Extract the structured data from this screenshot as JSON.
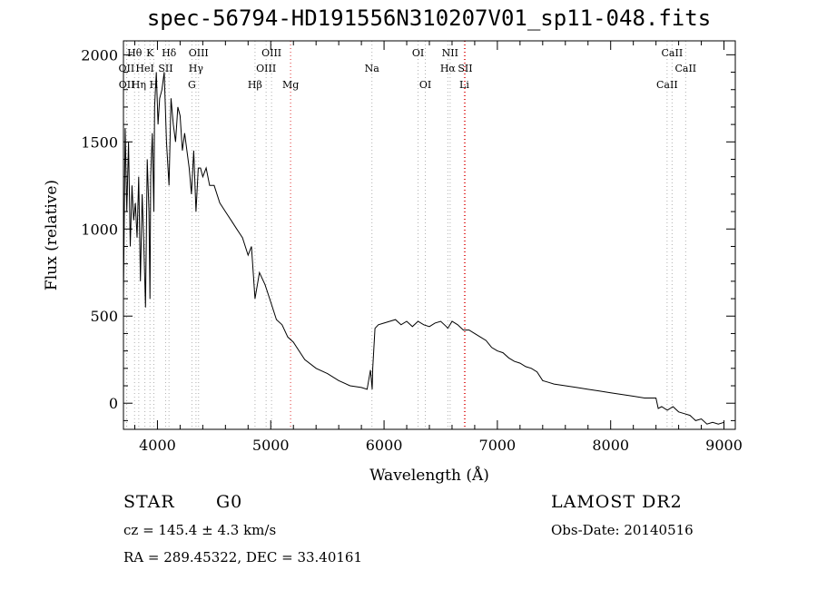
{
  "chart_data": {
    "type": "line",
    "title": "spec-56794-HD191556N310207V01_sp11-048.fits",
    "xlabel": "Wavelength (Å)",
    "ylabel": "Flux (relative)",
    "xlim": [
      3700,
      9100
    ],
    "ylim": [
      -150,
      2080
    ],
    "xticks": [
      4000,
      5000,
      6000,
      7000,
      8000,
      9000
    ],
    "yticks": [
      0,
      500,
      1000,
      1500,
      2000
    ],
    "grid": false,
    "series": [
      {
        "x": [
          3700,
          3715,
          3730,
          3745,
          3760,
          3775,
          3790,
          3805,
          3820,
          3835,
          3850,
          3865,
          3880,
          3895,
          3910,
          3925,
          3934,
          3940,
          3955,
          3968,
          3975,
          3990,
          4005,
          4020,
          4040,
          4060,
          4080,
          4102,
          4120,
          4140,
          4160,
          4180,
          4200,
          4220,
          4240,
          4260,
          4280,
          4300,
          4320,
          4340,
          4360,
          4380,
          4400,
          4430,
          4460,
          4500,
          4550,
          4600,
          4650,
          4700,
          4750,
          4800,
          4830,
          4861,
          4900,
          4950,
          5000,
          5050,
          5100,
          5150,
          5200,
          5300,
          5400,
          5500,
          5600,
          5700,
          5800,
          5850,
          5880,
          5895,
          5900,
          5920,
          5950,
          6000,
          6050,
          6100,
          6150,
          6200,
          6250,
          6300,
          6350,
          6400,
          6450,
          6500,
          6550,
          6563,
          6600,
          6650,
          6700,
          6750,
          6800,
          6850,
          6900,
          6950,
          7000,
          7050,
          7100,
          7150,
          7200,
          7250,
          7300,
          7350,
          7400,
          7450,
          7500,
          7600,
          7700,
          7800,
          7900,
          8000,
          8100,
          8200,
          8300,
          8400,
          8420,
          8450,
          8500,
          8550,
          8600,
          8650,
          8700,
          8750,
          8800,
          8850,
          8900,
          8950,
          9000
        ],
        "y": [
          600,
          1580,
          1100,
          1500,
          900,
          1250,
          1050,
          1150,
          950,
          1300,
          700,
          1200,
          900,
          550,
          1400,
          1100,
          600,
          1300,
          1550,
          1100,
          1700,
          1900,
          1600,
          1750,
          1800,
          1900,
          1500,
          1250,
          1750,
          1600,
          1500,
          1700,
          1650,
          1450,
          1550,
          1450,
          1350,
          1200,
          1450,
          1100,
          1350,
          1350,
          1300,
          1350,
          1250,
          1250,
          1150,
          1100,
          1050,
          1000,
          950,
          850,
          900,
          600,
          750,
          680,
          580,
          480,
          450,
          380,
          350,
          250,
          200,
          170,
          130,
          100,
          90,
          80,
          190,
          80,
          200,
          430,
          450,
          460,
          470,
          480,
          450,
          470,
          440,
          470,
          450,
          440,
          460,
          470,
          440,
          430,
          470,
          450,
          420,
          420,
          400,
          380,
          360,
          320,
          300,
          290,
          260,
          240,
          230,
          210,
          200,
          180,
          130,
          120,
          110,
          100,
          90,
          80,
          70,
          60,
          50,
          40,
          30,
          30,
          -30,
          -20,
          -40,
          -20,
          -50,
          -60,
          -70,
          -100,
          -90,
          -120,
          -110,
          -120,
          -110
        ]
      }
    ],
    "line_markers": [
      {
        "label": "Hθ",
        "x": 3798,
        "row": 1
      },
      {
        "label": "K",
        "x": 3934,
        "row": 1
      },
      {
        "label": "Hδ",
        "x": 4102,
        "row": 1
      },
      {
        "label": "OIII",
        "x": 4363,
        "row": 1
      },
      {
        "label": "OIII",
        "x": 5007,
        "row": 1
      },
      {
        "label": "OI",
        "x": 6300,
        "row": 1
      },
      {
        "label": "NII",
        "x": 6583,
        "row": 1
      },
      {
        "label": "CaII",
        "x": 8542,
        "row": 1
      },
      {
        "label": "OII",
        "x": 3727,
        "row": 2
      },
      {
        "label": "HeI",
        "x": 3889,
        "row": 2
      },
      {
        "label": "SII",
        "x": 4072,
        "row": 2
      },
      {
        "label": "Hγ",
        "x": 4340,
        "row": 2
      },
      {
        "label": "OIII",
        "x": 4959,
        "row": 2
      },
      {
        "label": "Na",
        "x": 5893,
        "row": 2
      },
      {
        "label": "Hα",
        "x": 6563,
        "row": 2
      },
      {
        "label": "SII",
        "x": 6716,
        "row": 2
      },
      {
        "label": "CaII",
        "x": 8662,
        "row": 2
      },
      {
        "label": "OII",
        "x": 3729,
        "row": 3
      },
      {
        "label": "Hη",
        "x": 3835,
        "row": 3
      },
      {
        "label": "H",
        "x": 3968,
        "row": 3
      },
      {
        "label": "G",
        "x": 4304,
        "row": 3
      },
      {
        "label": "Hβ",
        "x": 4861,
        "row": 3
      },
      {
        "label": "Mg",
        "x": 5175,
        "row": 3
      },
      {
        "label": "OI",
        "x": 6364,
        "row": 3
      },
      {
        "label": "Li",
        "x": 6708,
        "row": 3
      },
      {
        "label": "CaII",
        "x": 8498,
        "row": 3
      }
    ],
    "colors": {
      "spectrum": "#000000",
      "marker_line": "#b0b0b0",
      "marker_line_highlight": "#e03030"
    }
  },
  "footer": {
    "object_class": "STAR",
    "subclass": "G0",
    "survey": "LAMOST DR2",
    "redshift": "cz = 145.4 ± 4.3 km/s",
    "obs_date": "Obs-Date: 20140516",
    "coords": "RA = 289.45322, DEC =  33.40161"
  }
}
